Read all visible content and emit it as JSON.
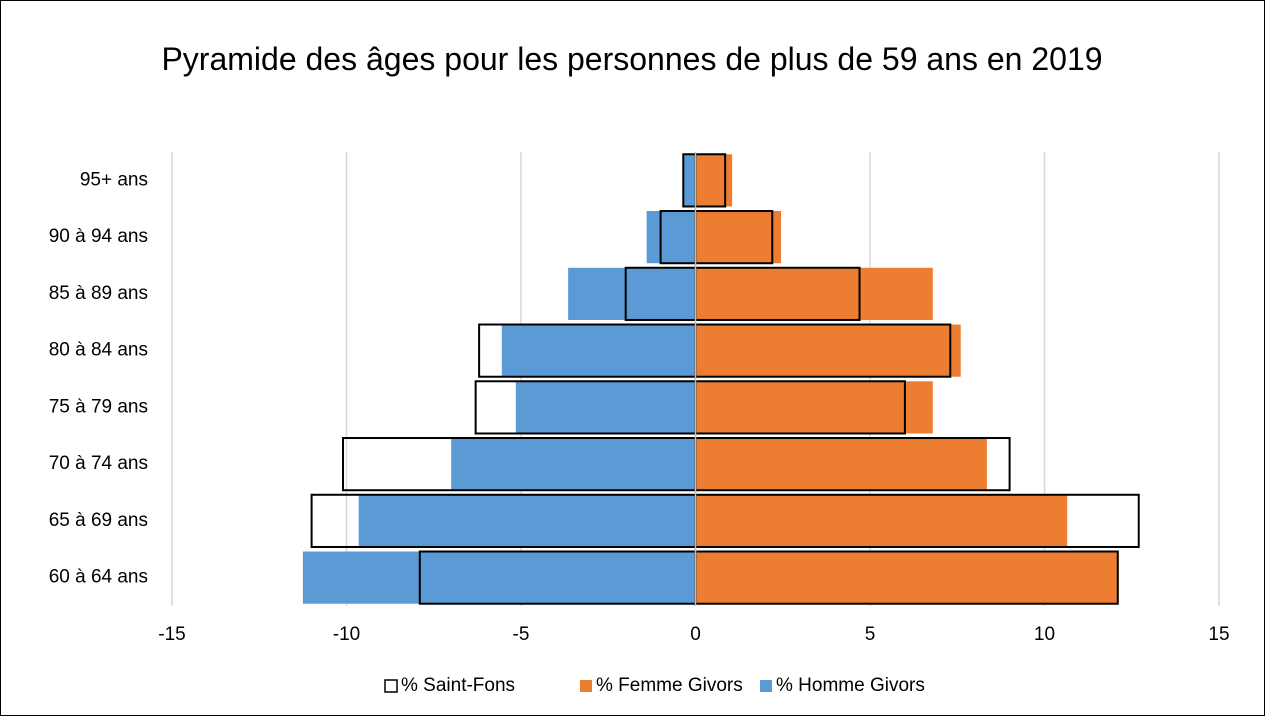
{
  "chart_data": {
    "type": "pyramid",
    "title": "Pyramide des âges pour les personnes de plus de 59 ans en 2019",
    "categories": [
      "95+ ans",
      "90 à 94 ans",
      "85 à 89 ans",
      "80 à 84 ans",
      "75 à 79 ans",
      "70 à 74 ans",
      "65 à 69 ans",
      "60 à 64 ans"
    ],
    "series": [
      {
        "name": "% Saint-Fons",
        "color": "#000000",
        "outline": true,
        "values": [
          [
            -0.35,
            0.85
          ],
          [
            -1.0,
            2.2
          ],
          [
            -2.0,
            4.7
          ],
          [
            -6.2,
            7.3
          ],
          [
            -6.3,
            6.0
          ],
          [
            -10.1,
            9.0
          ],
          [
            -11.0,
            12.7
          ],
          [
            -7.9,
            12.1
          ]
        ]
      },
      {
        "name": "% Femme Givors",
        "color": "#ed7d31",
        "values": [
          1.05,
          2.45,
          6.8,
          7.6,
          6.8,
          8.35,
          10.65,
          12.1
        ]
      },
      {
        "name": "% Homme Givors",
        "color": "#5b9bd5",
        "values": [
          -0.35,
          -1.4,
          -3.65,
          -5.55,
          -5.15,
          -7.0,
          -9.65,
          -11.25
        ]
      }
    ],
    "xlim": [
      -15,
      15
    ],
    "xticks": [
      -15,
      -10,
      -5,
      0,
      5,
      10,
      15
    ],
    "grid": true,
    "legend": "bottom"
  }
}
